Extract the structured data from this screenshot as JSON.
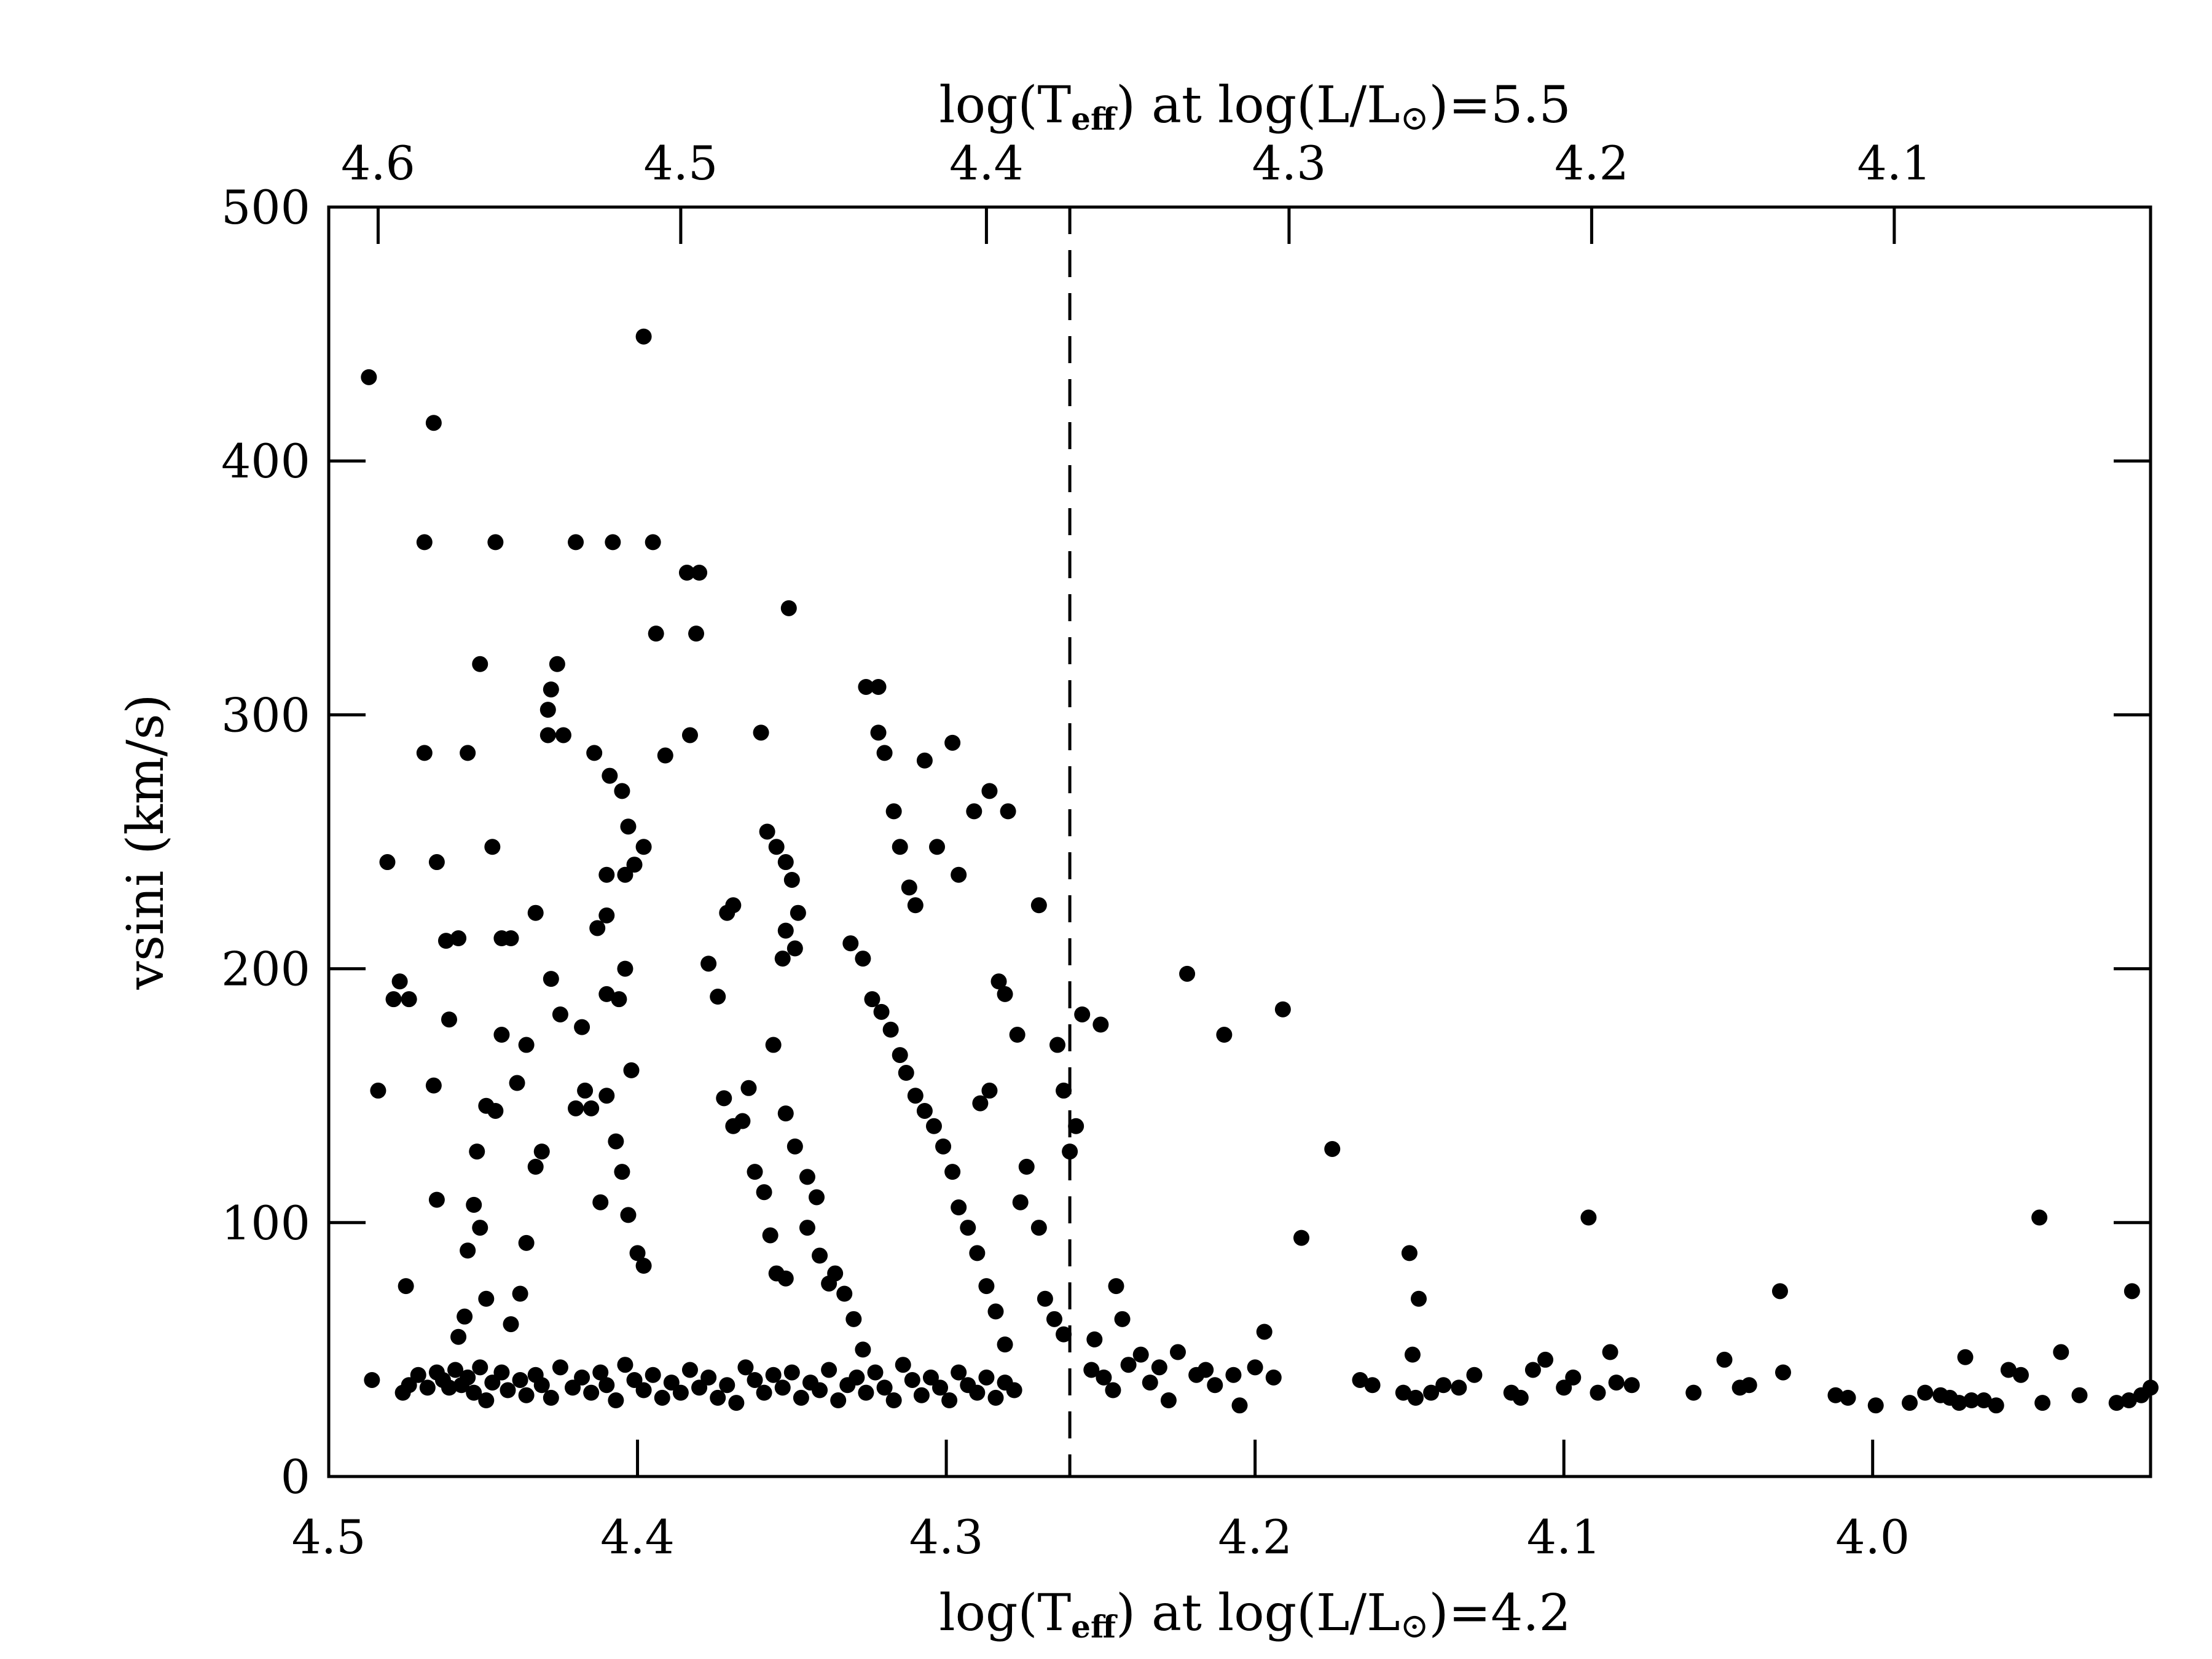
{
  "chart_data": {
    "type": "scatter",
    "title": "",
    "xlabel": {
      "prefix": "log(T",
      "sub": "eff",
      "mid": ") at log(L/L",
      "sun": "⊙",
      "suffix": ")=4.2"
    },
    "x2label": {
      "prefix": "log(T",
      "sub": "eff",
      "mid": ") at log(L/L",
      "sun": "⊙",
      "suffix": ")=5.5"
    },
    "ylabel": "vsini (km/s)",
    "xlim": [
      4.5,
      3.91
    ],
    "ylim": [
      0,
      500
    ],
    "x_ticks": [
      "4.5",
      "4.4",
      "4.3",
      "4.2",
      "4.1",
      "4.0"
    ],
    "x_tick_values": [
      4.5,
      4.4,
      4.3,
      4.2,
      4.1,
      4.0
    ],
    "x2_ticks": [
      "4.6",
      "4.5",
      "4.4",
      "4.3",
      "4.2",
      "4.1"
    ],
    "x2_tick_positions_in_x_units": [
      4.484,
      4.386,
      4.287,
      4.189,
      4.091,
      3.993
    ],
    "y_ticks": [
      "0",
      "100",
      "200",
      "300",
      "400",
      "500"
    ],
    "y_tick_values": [
      0,
      100,
      200,
      300,
      400,
      500
    ],
    "divider_x": 4.26,
    "grid": false,
    "series": [
      {
        "points": [
          [
            4.487,
            433
          ],
          [
            4.481,
            242
          ],
          [
            4.479,
            188
          ],
          [
            4.477,
            195
          ],
          [
            4.474,
            188
          ],
          [
            4.469,
            368
          ],
          [
            4.466,
            415
          ],
          [
            4.465,
            242
          ],
          [
            4.466,
            154
          ],
          [
            4.465,
            109
          ],
          [
            4.469,
            285
          ],
          [
            4.461,
            180
          ],
          [
            4.458,
            212
          ],
          [
            4.462,
            211
          ],
          [
            4.484,
            152
          ],
          [
            4.475,
            75
          ],
          [
            4.486,
            38
          ],
          [
            4.476,
            33
          ],
          [
            4.474,
            36
          ],
          [
            4.471,
            40
          ],
          [
            4.468,
            35
          ],
          [
            4.465,
            41
          ],
          [
            4.463,
            38
          ],
          [
            4.461,
            35
          ],
          [
            4.459,
            42
          ],
          [
            4.457,
            36
          ],
          [
            4.455,
            39
          ],
          [
            4.453,
            33
          ],
          [
            4.451,
            43
          ],
          [
            4.449,
            30
          ],
          [
            4.447,
            37
          ],
          [
            4.444,
            41
          ],
          [
            4.442,
            34
          ],
          [
            4.438,
            38
          ],
          [
            4.436,
            32
          ],
          [
            4.433,
            40
          ],
          [
            4.431,
            36
          ],
          [
            4.428,
            31
          ],
          [
            4.425,
            43
          ],
          [
            4.421,
            35
          ],
          [
            4.418,
            39
          ],
          [
            4.415,
            33
          ],
          [
            4.412,
            41
          ],
          [
            4.41,
            36
          ],
          [
            4.407,
            30
          ],
          [
            4.404,
            44
          ],
          [
            4.401,
            38
          ],
          [
            4.398,
            34
          ],
          [
            4.395,
            40
          ],
          [
            4.392,
            31
          ],
          [
            4.389,
            37
          ],
          [
            4.386,
            33
          ],
          [
            4.383,
            42
          ],
          [
            4.38,
            35
          ],
          [
            4.377,
            39
          ],
          [
            4.374,
            31
          ],
          [
            4.371,
            36
          ],
          [
            4.368,
            29
          ],
          [
            4.365,
            43
          ],
          [
            4.362,
            38
          ],
          [
            4.359,
            33
          ],
          [
            4.356,
            40
          ],
          [
            4.353,
            35
          ],
          [
            4.35,
            41
          ],
          [
            4.347,
            31
          ],
          [
            4.344,
            37
          ],
          [
            4.341,
            34
          ],
          [
            4.338,
            42
          ],
          [
            4.335,
            30
          ],
          [
            4.332,
            36
          ],
          [
            4.329,
            39
          ],
          [
            4.326,
            33
          ],
          [
            4.323,
            41
          ],
          [
            4.32,
            35
          ],
          [
            4.317,
            30
          ],
          [
            4.314,
            44
          ],
          [
            4.311,
            38
          ],
          [
            4.308,
            32
          ],
          [
            4.305,
            39
          ],
          [
            4.302,
            35
          ],
          [
            4.299,
            30
          ],
          [
            4.296,
            41
          ],
          [
            4.293,
            36
          ],
          [
            4.29,
            33
          ],
          [
            4.287,
            39
          ],
          [
            4.284,
            31
          ],
          [
            4.281,
            37
          ],
          [
            4.278,
            34
          ],
          [
            4.458,
            55
          ],
          [
            4.455,
            89
          ],
          [
            4.452,
            128
          ],
          [
            4.449,
            146
          ],
          [
            4.451,
            98
          ],
          [
            4.453,
            107
          ],
          [
            4.456,
            63
          ],
          [
            4.449,
            70
          ],
          [
            4.446,
            144
          ],
          [
            4.451,
            320
          ],
          [
            4.455,
            285
          ],
          [
            4.447,
            248
          ],
          [
            4.444,
            212
          ],
          [
            4.441,
            212
          ],
          [
            4.444,
            174
          ],
          [
            4.439,
            155
          ],
          [
            4.436,
            170
          ],
          [
            4.433,
            122
          ],
          [
            4.431,
            128
          ],
          [
            4.436,
            92
          ],
          [
            4.438,
            72
          ],
          [
            4.441,
            60
          ],
          [
            4.433,
            222
          ],
          [
            4.429,
            292
          ],
          [
            4.429,
            302
          ],
          [
            4.428,
            310
          ],
          [
            4.426,
            320
          ],
          [
            4.424,
            292
          ],
          [
            4.428,
            196
          ],
          [
            4.425,
            182
          ],
          [
            4.42,
            368
          ],
          [
            4.418,
            177
          ],
          [
            4.42,
            145
          ],
          [
            4.417,
            152
          ],
          [
            4.415,
            145
          ],
          [
            4.412,
            108
          ],
          [
            4.41,
            150
          ],
          [
            4.407,
            132
          ],
          [
            4.405,
            120
          ],
          [
            4.403,
            103
          ],
          [
            4.4,
            88
          ],
          [
            4.402,
            160
          ],
          [
            4.398,
            83
          ],
          [
            4.408,
            368
          ],
          [
            4.446,
            368
          ],
          [
            4.414,
            285
          ],
          [
            4.409,
            276
          ],
          [
            4.405,
            270
          ],
          [
            4.403,
            256
          ],
          [
            4.41,
            237
          ],
          [
            4.404,
            237
          ],
          [
            4.401,
            241
          ],
          [
            4.398,
            248
          ],
          [
            4.41,
            221
          ],
          [
            4.413,
            216
          ],
          [
            4.41,
            190
          ],
          [
            4.406,
            188
          ],
          [
            4.404,
            200
          ],
          [
            4.398,
            449
          ],
          [
            4.395,
            368
          ],
          [
            4.394,
            332
          ],
          [
            4.391,
            284
          ],
          [
            4.384,
            356
          ],
          [
            4.38,
            356
          ],
          [
            4.383,
            292
          ],
          [
            4.381,
            332
          ],
          [
            4.377,
            202
          ],
          [
            4.374,
            189
          ],
          [
            4.371,
            222
          ],
          [
            4.369,
            225
          ],
          [
            4.372,
            149
          ],
          [
            4.369,
            138
          ],
          [
            4.366,
            140
          ],
          [
            4.364,
            153
          ],
          [
            4.362,
            120
          ],
          [
            4.359,
            112
          ],
          [
            4.357,
            95
          ],
          [
            4.355,
            80
          ],
          [
            4.352,
            78
          ],
          [
            4.351,
            342
          ],
          [
            4.36,
            293
          ],
          [
            4.358,
            254
          ],
          [
            4.355,
            248
          ],
          [
            4.352,
            242
          ],
          [
            4.35,
            235
          ],
          [
            4.348,
            222
          ],
          [
            4.352,
            215
          ],
          [
            4.349,
            208
          ],
          [
            4.353,
            204
          ],
          [
            4.356,
            170
          ],
          [
            4.352,
            143
          ],
          [
            4.349,
            130
          ],
          [
            4.345,
            118
          ],
          [
            4.342,
            110
          ],
          [
            4.345,
            98
          ],
          [
            4.341,
            87
          ],
          [
            4.338,
            76
          ],
          [
            4.336,
            80
          ],
          [
            4.333,
            72
          ],
          [
            4.33,
            62
          ],
          [
            4.327,
            50
          ],
          [
            4.331,
            210
          ],
          [
            4.327,
            204
          ],
          [
            4.324,
            188
          ],
          [
            4.321,
            183
          ],
          [
            4.318,
            176
          ],
          [
            4.315,
            166
          ],
          [
            4.313,
            159
          ],
          [
            4.31,
            150
          ],
          [
            4.307,
            144
          ],
          [
            4.304,
            138
          ],
          [
            4.301,
            130
          ],
          [
            4.298,
            120
          ],
          [
            4.296,
            106
          ],
          [
            4.293,
            98
          ],
          [
            4.29,
            88
          ],
          [
            4.287,
            75
          ],
          [
            4.284,
            65
          ],
          [
            4.281,
            52
          ],
          [
            4.326,
            311
          ],
          [
            4.322,
            311
          ],
          [
            4.322,
            293
          ],
          [
            4.32,
            285
          ],
          [
            4.317,
            262
          ],
          [
            4.315,
            248
          ],
          [
            4.31,
            225
          ],
          [
            4.312,
            232
          ],
          [
            4.307,
            282
          ],
          [
            4.303,
            248
          ],
          [
            4.298,
            289
          ],
          [
            4.296,
            237
          ],
          [
            4.291,
            262
          ],
          [
            4.286,
            270
          ],
          [
            4.28,
            262
          ],
          [
            4.283,
            195
          ],
          [
            4.281,
            190
          ],
          [
            4.277,
            174
          ],
          [
            4.286,
            152
          ],
          [
            4.289,
            147
          ],
          [
            4.274,
            122
          ],
          [
            4.276,
            108
          ],
          [
            4.27,
            98
          ],
          [
            4.268,
            70
          ],
          [
            4.265,
            62
          ],
          [
            4.262,
            56
          ],
          [
            4.27,
            225
          ],
          [
            4.264,
            170
          ],
          [
            4.262,
            152
          ],
          [
            4.258,
            138
          ],
          [
            4.26,
            128
          ],
          [
            4.256,
            182
          ],
          [
            4.25,
            178
          ],
          [
            4.245,
            75
          ],
          [
            4.243,
            62
          ],
          [
            4.252,
            54
          ],
          [
            4.253,
            42
          ],
          [
            4.249,
            39
          ],
          [
            4.246,
            34
          ],
          [
            4.241,
            44
          ],
          [
            4.237,
            48
          ],
          [
            4.234,
            37
          ],
          [
            4.231,
            43
          ],
          [
            4.228,
            30
          ],
          [
            4.225,
            49
          ],
          [
            4.222,
            198
          ],
          [
            4.219,
            40
          ],
          [
            4.216,
            42
          ],
          [
            4.213,
            36
          ],
          [
            4.21,
            174
          ],
          [
            4.207,
            40
          ],
          [
            4.205,
            28
          ],
          [
            4.2,
            43
          ],
          [
            4.197,
            57
          ],
          [
            4.194,
            39
          ],
          [
            4.191,
            184
          ],
          [
            4.185,
            94
          ],
          [
            4.175,
            129
          ],
          [
            4.166,
            38
          ],
          [
            4.162,
            36
          ],
          [
            4.152,
            33
          ],
          [
            4.148,
            31
          ],
          [
            4.15,
            88
          ],
          [
            4.149,
            48
          ],
          [
            4.147,
            70
          ],
          [
            4.143,
            33
          ],
          [
            4.139,
            36
          ],
          [
            4.134,
            35
          ],
          [
            4.129,
            40
          ],
          [
            4.117,
            33
          ],
          [
            4.114,
            31
          ],
          [
            4.11,
            42
          ],
          [
            4.106,
            46
          ],
          [
            4.1,
            35
          ],
          [
            4.097,
            39
          ],
          [
            4.092,
            102
          ],
          [
            4.089,
            33
          ],
          [
            4.085,
            49
          ],
          [
            4.083,
            37
          ],
          [
            4.078,
            36
          ],
          [
            4.058,
            33
          ],
          [
            4.048,
            46
          ],
          [
            4.043,
            35
          ],
          [
            4.04,
            36
          ],
          [
            4.03,
            73
          ],
          [
            4.029,
            41
          ],
          [
            4.012,
            32
          ],
          [
            4.008,
            31
          ],
          [
            3.999,
            28
          ],
          [
            3.988,
            29
          ],
          [
            3.983,
            33
          ],
          [
            3.978,
            32
          ],
          [
            3.975,
            31
          ],
          [
            3.972,
            29
          ],
          [
            3.97,
            47
          ],
          [
            3.968,
            30
          ],
          [
            3.964,
            30
          ],
          [
            3.96,
            28
          ],
          [
            3.956,
            42
          ],
          [
            3.952,
            40
          ],
          [
            3.946,
            102
          ],
          [
            3.945,
            29
          ],
          [
            3.939,
            49
          ],
          [
            3.933,
            32
          ],
          [
            3.921,
            29
          ],
          [
            3.917,
            30
          ],
          [
            3.916,
            73
          ],
          [
            3.913,
            32
          ],
          [
            3.91,
            35
          ]
        ]
      }
    ]
  }
}
